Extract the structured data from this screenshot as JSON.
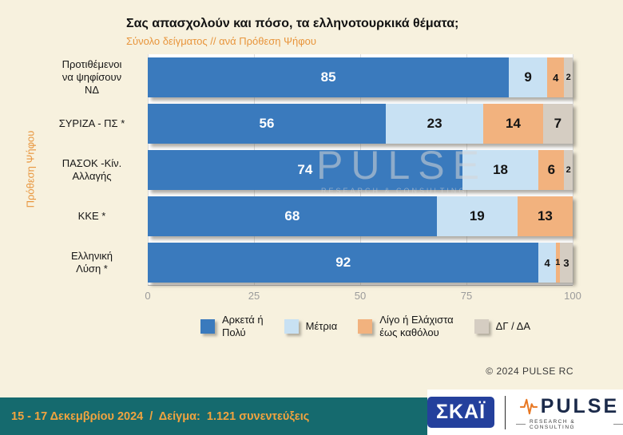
{
  "colors": {
    "page_background": "#f7f1de",
    "plot_background": "#ffffff",
    "subtitle_orange": "#e8953c",
    "footer_strip_teal": "#156a6e",
    "footer_text_orange": "#f0a33f",
    "skai_blue": "#24409c",
    "pulse_navy": "#1b2a4a",
    "pulse_orange": "#e87722"
  },
  "chart_data": {
    "type": "bar",
    "orientation": "horizontal",
    "stacked": true,
    "unit": "percent",
    "title": "Σας απασχολούν και πόσο, τα ελληνοτουρκικά θέματα;",
    "subtitle": "Σύνολο δείγματος // ανά Πρόθεση Ψήφου",
    "y_axis_label": "Πρόθεση Ψήφου",
    "xlim": [
      0,
      100
    ],
    "xticks": [
      0,
      25,
      50,
      75,
      100
    ],
    "grid": true,
    "legend_position": "bottom",
    "watermark": "PULSE",
    "watermark_sub": "RESEARCH & CONSULTING",
    "categories": [
      [
        "Προτιθέμενοι",
        "να ψηφίσουν",
        "ΝΔ"
      ],
      [
        "ΣΥΡΙΖΑ - ΠΣ *"
      ],
      [
        "ΠΑΣΟΚ -Κίν.",
        "Αλλαγής"
      ],
      [
        "ΚΚΕ *"
      ],
      [
        "Ελληνική",
        "Λύση *"
      ]
    ],
    "series": [
      {
        "name": "Αρκετά ή Πολύ",
        "legend_lines": [
          "Αρκετά ή",
          "Πολύ"
        ],
        "color": "#3a7abd",
        "text_color": "#ffffff",
        "values": [
          85,
          56,
          74,
          68,
          92
        ]
      },
      {
        "name": "Μέτρια",
        "legend_lines": [
          "Μέτρια"
        ],
        "color": "#c8e1f3",
        "text_color": "#141414",
        "values": [
          9,
          23,
          18,
          19,
          4
        ]
      },
      {
        "name": "Λίγο ή Ελάχιστα έως καθόλου",
        "legend_lines": [
          "Λίγο ή Ελάχιστα",
          "έως καθόλου"
        ],
        "color": "#f2b27e",
        "text_color": "#141414",
        "values": [
          4,
          14,
          6,
          13,
          1
        ]
      },
      {
        "name": "ΔΓ / ΔΑ",
        "legend_lines": [
          "ΔΓ / ΔΑ"
        ],
        "color": "#d5cdc2",
        "text_color": "#141414",
        "values": [
          2,
          7,
          2,
          0,
          3
        ]
      }
    ]
  },
  "footnote": {
    "copyright": "©  2024  PULSE RC"
  },
  "footer": {
    "survey_info": "15 - 17 Δεκεμβρίου 2024  /  Δείγμα:  1.121 συνεντεύξεις",
    "skai_logo_text": "ΣΚΑΪ",
    "pulse_logo_text": "PULSE",
    "pulse_logo_tagline": "RESEARCH & CONSULTING"
  }
}
